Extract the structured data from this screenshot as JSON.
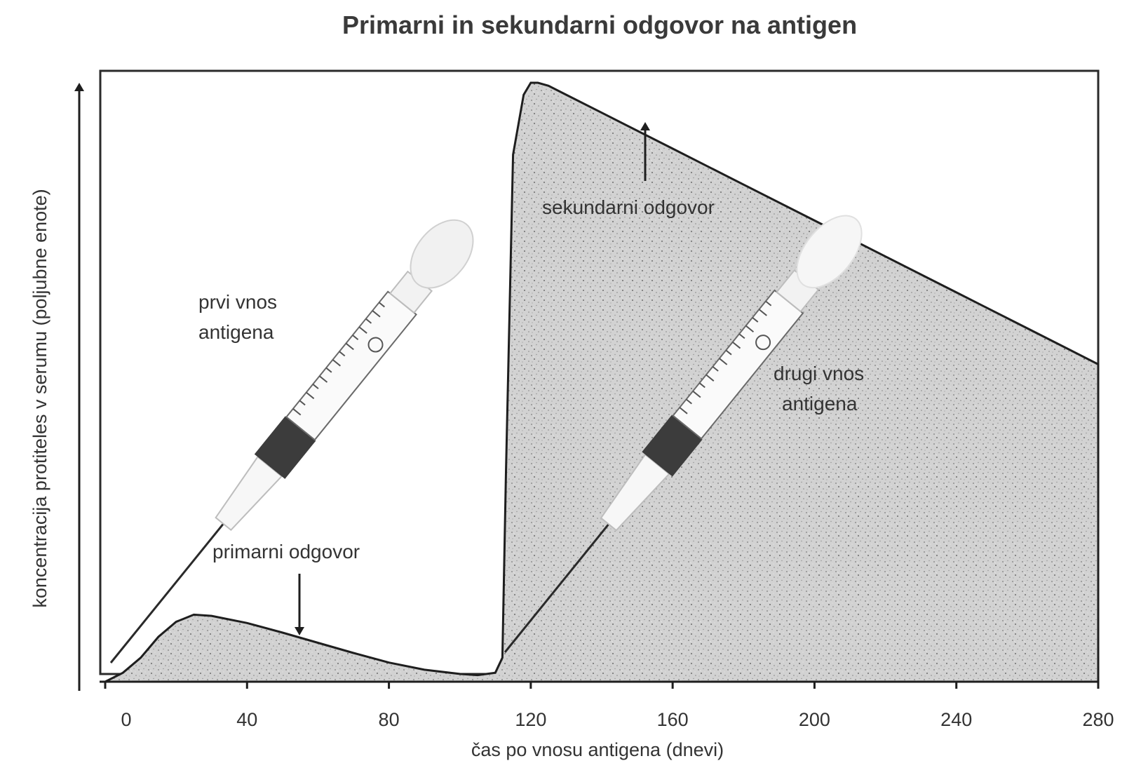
{
  "chart_data": {
    "type": "area",
    "title": "Primarni in sekundarni odgovor na antigen",
    "xlabel": "čas po vnosu antigena (dnevi)",
    "ylabel": "koncentracija protiteles v serumu (poljubne enote)",
    "xlim": [
      0,
      280
    ],
    "ylim": [
      0,
      100
    ],
    "x_ticks": [
      0,
      40,
      80,
      120,
      160,
      200,
      240,
      280
    ],
    "x_tick_labels": [
      "0",
      "40",
      "80",
      "120",
      "160",
      "200",
      "240",
      "280"
    ],
    "series": [
      {
        "x": [
          0,
          5,
          10,
          15,
          20,
          25,
          30,
          40,
          50,
          60,
          70,
          80,
          90,
          100,
          105,
          110,
          112,
          113,
          115,
          118,
          120,
          122,
          125,
          130,
          140,
          160,
          180,
          200,
          220,
          240,
          260,
          280
        ],
        "y": [
          0,
          1.5,
          4,
          7.5,
          10,
          11.2,
          11,
          9.8,
          8.2,
          6.5,
          4.8,
          3.2,
          2,
          1.3,
          1.1,
          1.5,
          4,
          35,
          88,
          98,
          100,
          100,
          99.5,
          98,
          95,
          89,
          83,
          77,
          71,
          65,
          59,
          53
        ]
      }
    ],
    "annotations": {
      "primary_response": "primarni odgovor",
      "secondary_response": "sekundarni odgovor",
      "first_injection_line1": "prvi vnos",
      "first_injection_line2": "antigena",
      "second_injection_line1": "drugi vnos",
      "second_injection_line2": "antigena"
    },
    "grid": false,
    "legend": "none",
    "colors": {
      "area_fill": "#cfcfcf",
      "line": "#1e1e1e",
      "syringe_plunger": "#3c3c3c"
    }
  }
}
